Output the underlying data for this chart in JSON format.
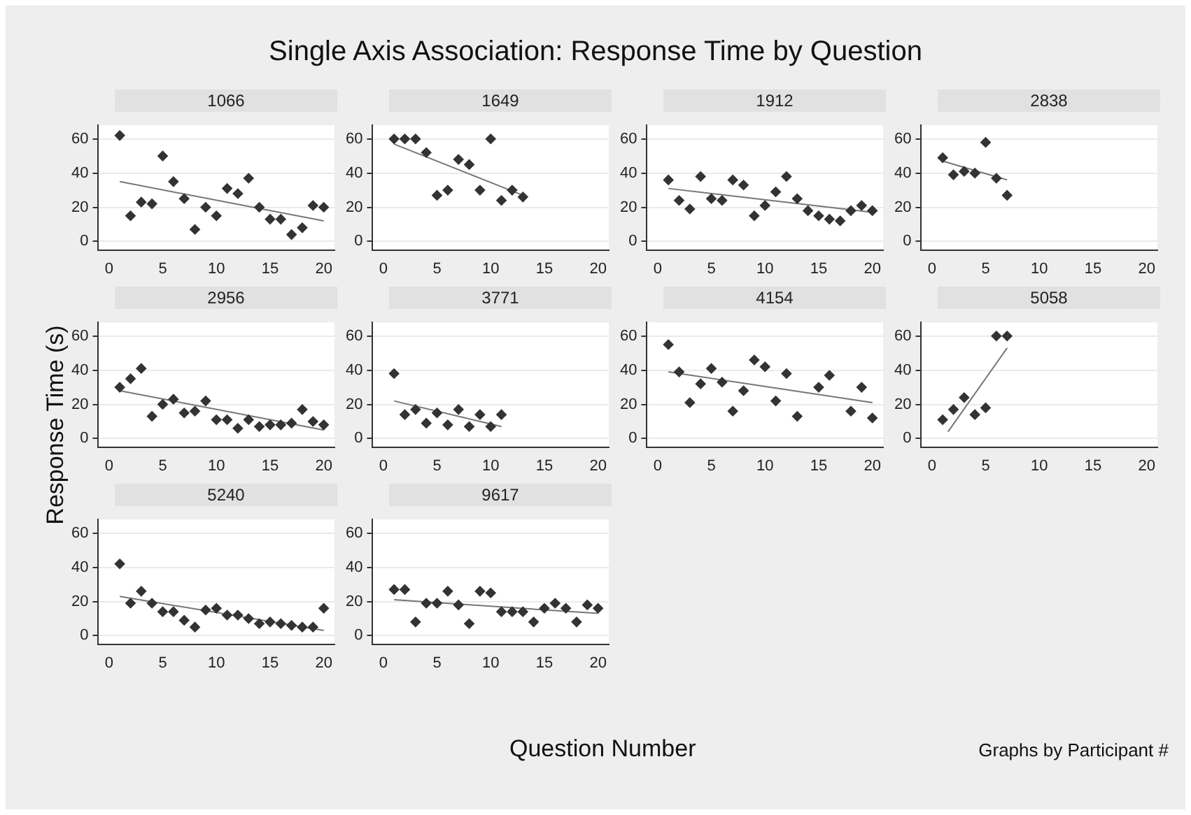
{
  "chart_data": [
    {
      "type": "other",
      "title": "Single Axis Association: Response Time by Question",
      "xlabel": "Question Number",
      "ylabel": "Response Time (s)",
      "annotations": [
        "Graphs by Participant #"
      ]
    },
    {
      "type": "scatter",
      "title": "1066",
      "xlim": [
        -1,
        21
      ],
      "xticks": [
        0,
        5,
        10,
        15,
        20
      ],
      "ylim": [
        -5,
        68
      ],
      "yticks": [
        0,
        20,
        40,
        60
      ],
      "grid": "y",
      "marker": "diamond",
      "series": [
        {
          "color": "#333333",
          "x": [
            1,
            2,
            3,
            4,
            5,
            6,
            7,
            8,
            9,
            10,
            11,
            12,
            13,
            14,
            15,
            16,
            17,
            18,
            19,
            20
          ],
          "values": [
            62,
            15,
            23,
            22,
            50,
            35,
            25,
            7,
            20,
            15,
            31,
            28,
            37,
            20,
            13,
            13,
            4,
            8,
            21,
            20
          ]
        },
        {
          "type": "line",
          "marker": "none",
          "color": "#777777",
          "x": [
            1,
            20
          ],
          "values": [
            35,
            12
          ]
        }
      ]
    },
    {
      "type": "scatter",
      "title": "1649",
      "xlim": [
        -1,
        21
      ],
      "xticks": [
        0,
        5,
        10,
        15,
        20
      ],
      "ylim": [
        -5,
        68
      ],
      "yticks": [
        0,
        20,
        40,
        60
      ],
      "grid": "y",
      "marker": "diamond",
      "series": [
        {
          "color": "#333333",
          "x": [
            1,
            2,
            3,
            4,
            5,
            6,
            7,
            8,
            9,
            10,
            11,
            12,
            13
          ],
          "values": [
            60,
            60,
            60,
            52,
            27,
            30,
            48,
            45,
            30,
            60,
            24,
            30,
            26
          ]
        },
        {
          "type": "line",
          "marker": "none",
          "color": "#777777",
          "x": [
            1,
            13
          ],
          "values": [
            57,
            27
          ]
        }
      ]
    },
    {
      "type": "scatter",
      "title": "1912",
      "xlim": [
        -1,
        21
      ],
      "xticks": [
        0,
        5,
        10,
        15,
        20
      ],
      "ylim": [
        -5,
        68
      ],
      "yticks": [
        0,
        20,
        40,
        60
      ],
      "grid": "y",
      "marker": "diamond",
      "series": [
        {
          "color": "#333333",
          "x": [
            1,
            2,
            3,
            4,
            5,
            6,
            7,
            8,
            9,
            10,
            11,
            12,
            13,
            14,
            15,
            16,
            17,
            18,
            19,
            20
          ],
          "values": [
            36,
            24,
            19,
            38,
            25,
            24,
            36,
            33,
            15,
            21,
            29,
            38,
            25,
            18,
            15,
            13,
            12,
            18,
            21,
            18
          ]
        },
        {
          "type": "line",
          "marker": "none",
          "color": "#777777",
          "x": [
            1,
            20
          ],
          "values": [
            31,
            17
          ]
        }
      ]
    },
    {
      "type": "scatter",
      "title": "2838",
      "xlim": [
        -1,
        21
      ],
      "xticks": [
        0,
        5,
        10,
        15,
        20
      ],
      "ylim": [
        -5,
        68
      ],
      "yticks": [
        0,
        20,
        40,
        60
      ],
      "grid": "y",
      "marker": "diamond",
      "series": [
        {
          "color": "#333333",
          "x": [
            1,
            2,
            3,
            4,
            5,
            6,
            7
          ],
          "values": [
            49,
            39,
            41,
            40,
            58,
            37,
            27
          ]
        },
        {
          "type": "line",
          "marker": "none",
          "color": "#777777",
          "x": [
            1,
            7
          ],
          "values": [
            47,
            36
          ]
        }
      ]
    },
    {
      "type": "scatter",
      "title": "2956",
      "xlim": [
        -1,
        21
      ],
      "xticks": [
        0,
        5,
        10,
        15,
        20
      ],
      "ylim": [
        -5,
        68
      ],
      "yticks": [
        0,
        20,
        40,
        60
      ],
      "grid": "y",
      "marker": "diamond",
      "series": [
        {
          "color": "#333333",
          "x": [
            1,
            2,
            3,
            4,
            5,
            6,
            7,
            8,
            9,
            10,
            11,
            12,
            13,
            14,
            15,
            16,
            17,
            18,
            19,
            20
          ],
          "values": [
            30,
            35,
            41,
            13,
            20,
            23,
            15,
            16,
            22,
            11,
            11,
            6,
            11,
            7,
            8,
            8,
            9,
            17,
            10,
            8
          ]
        },
        {
          "type": "line",
          "marker": "none",
          "color": "#777777",
          "x": [
            1,
            20
          ],
          "values": [
            28,
            5
          ]
        }
      ]
    },
    {
      "type": "scatter",
      "title": "3771",
      "xlim": [
        -1,
        21
      ],
      "xticks": [
        0,
        5,
        10,
        15,
        20
      ],
      "ylim": [
        -5,
        68
      ],
      "yticks": [
        0,
        20,
        40,
        60
      ],
      "grid": "y",
      "marker": "diamond",
      "series": [
        {
          "color": "#333333",
          "x": [
            1,
            2,
            3,
            4,
            5,
            6,
            7,
            8,
            9,
            10,
            11
          ],
          "values": [
            38,
            14,
            17,
            9,
            15,
            8,
            17,
            7,
            14,
            7,
            14
          ]
        },
        {
          "type": "line",
          "marker": "none",
          "color": "#777777",
          "x": [
            1,
            11
          ],
          "values": [
            22,
            7
          ]
        }
      ]
    },
    {
      "type": "scatter",
      "title": "4154",
      "xlim": [
        -1,
        21
      ],
      "xticks": [
        0,
        5,
        10,
        15,
        20
      ],
      "ylim": [
        -5,
        68
      ],
      "yticks": [
        0,
        20,
        40,
        60
      ],
      "grid": "y",
      "marker": "diamond",
      "series": [
        {
          "color": "#333333",
          "x": [
            1,
            2,
            3,
            4,
            5,
            6,
            7,
            8,
            9,
            10,
            11,
            12,
            13,
            15,
            16,
            18,
            19,
            20
          ],
          "values": [
            55,
            39,
            21,
            32,
            41,
            33,
            16,
            28,
            46,
            42,
            22,
            38,
            13,
            30,
            37,
            16,
            30,
            12
          ]
        },
        {
          "type": "line",
          "marker": "none",
          "color": "#777777",
          "x": [
            1,
            20
          ],
          "values": [
            39,
            21
          ]
        }
      ]
    },
    {
      "type": "scatter",
      "title": "5058",
      "xlim": [
        -1,
        21
      ],
      "xticks": [
        0,
        5,
        10,
        15,
        20
      ],
      "ylim": [
        -5,
        68
      ],
      "yticks": [
        0,
        20,
        40,
        60
      ],
      "grid": "y",
      "marker": "diamond",
      "series": [
        {
          "color": "#333333",
          "x": [
            1,
            2,
            3,
            4,
            5,
            6,
            7
          ],
          "values": [
            11,
            17,
            24,
            14,
            18,
            60,
            60
          ]
        },
        {
          "type": "line",
          "marker": "none",
          "color": "#777777",
          "x": [
            1.5,
            7
          ],
          "values": [
            4,
            53
          ]
        }
      ]
    },
    {
      "type": "scatter",
      "title": "5240",
      "xlim": [
        -1,
        21
      ],
      "xticks": [
        0,
        5,
        10,
        15,
        20
      ],
      "ylim": [
        -5,
        68
      ],
      "yticks": [
        0,
        20,
        40,
        60
      ],
      "grid": "y",
      "marker": "diamond",
      "series": [
        {
          "color": "#333333",
          "x": [
            1,
            2,
            3,
            4,
            5,
            6,
            7,
            8,
            9,
            10,
            11,
            12,
            13,
            14,
            15,
            16,
            17,
            18,
            19,
            20
          ],
          "values": [
            42,
            19,
            26,
            19,
            14,
            14,
            9,
            5,
            15,
            16,
            12,
            12,
            10,
            7,
            8,
            7,
            6,
            5,
            5,
            16
          ]
        },
        {
          "type": "line",
          "marker": "none",
          "color": "#777777",
          "x": [
            1,
            20
          ],
          "values": [
            23,
            3
          ]
        }
      ]
    },
    {
      "type": "scatter",
      "title": "9617",
      "xlim": [
        -1,
        21
      ],
      "xticks": [
        0,
        5,
        10,
        15,
        20
      ],
      "ylim": [
        -5,
        68
      ],
      "yticks": [
        0,
        20,
        40,
        60
      ],
      "grid": "y",
      "marker": "diamond",
      "series": [
        {
          "color": "#333333",
          "x": [
            1,
            2,
            3,
            4,
            5,
            6,
            7,
            8,
            9,
            10,
            11,
            12,
            13,
            14,
            15,
            16,
            17,
            18,
            19,
            20
          ],
          "values": [
            27,
            27,
            8,
            19,
            19,
            26,
            18,
            7,
            26,
            25,
            14,
            14,
            14,
            8,
            16,
            19,
            16,
            8,
            18,
            16
          ]
        },
        {
          "type": "line",
          "marker": "none",
          "color": "#777777",
          "x": [
            1,
            20
          ],
          "values": [
            21,
            13
          ]
        }
      ]
    }
  ]
}
